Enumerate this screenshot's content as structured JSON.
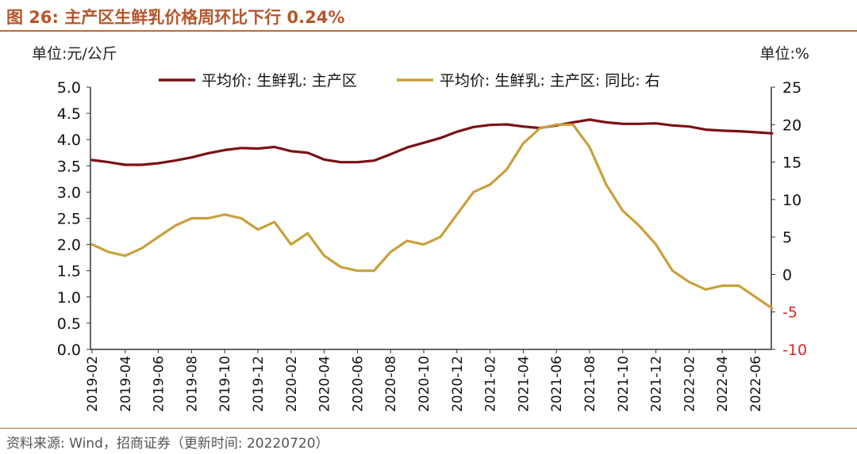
{
  "figure": {
    "title": "图 26:  主产区生鲜乳价格周环比下行 0.24%",
    "source": "资料来源:  Wind，招商证券（更新时间:  20220720）",
    "colors": {
      "accent": "#B5562B",
      "series_primary": "#7B1113",
      "series_secondary": "#C9A13B",
      "negative_tick": "#E0241B"
    }
  },
  "chart_data": {
    "type": "line",
    "left_unit": "单位:元/公斤",
    "right_unit": "单位:%",
    "ylim": [
      0,
      5
    ],
    "y2lim": [
      -10,
      25
    ],
    "yticks": [
      "0.0",
      "0.5",
      "1.0",
      "1.5",
      "2.0",
      "2.5",
      "3.0",
      "3.5",
      "4.0",
      "4.5",
      "5.0"
    ],
    "y2ticks": [
      "-10",
      "-5",
      "0",
      "5",
      "10",
      "15",
      "20",
      "25"
    ],
    "x_labels": [
      "2019-02",
      "2019-04",
      "2019-06",
      "2019-08",
      "2019-10",
      "2019-12",
      "2020-02",
      "2020-04",
      "2020-06",
      "2020-08",
      "2020-10",
      "2020-12",
      "2021-02",
      "2021-04",
      "2021-06",
      "2021-08",
      "2021-10",
      "2021-12",
      "2022-02",
      "2022-04",
      "2022-06"
    ],
    "series": [
      {
        "name": "平均价: 生鲜乳: 主产区",
        "axis": "left",
        "color": "#7B1113",
        "points": [
          [
            "2019-02",
            3.61
          ],
          [
            "2019-03",
            3.57
          ],
          [
            "2019-04",
            3.52
          ],
          [
            "2019-05",
            3.52
          ],
          [
            "2019-06",
            3.55
          ],
          [
            "2019-07",
            3.6
          ],
          [
            "2019-08",
            3.66
          ],
          [
            "2019-09",
            3.74
          ],
          [
            "2019-10",
            3.8
          ],
          [
            "2019-11",
            3.84
          ],
          [
            "2019-12",
            3.83
          ],
          [
            "2020-01",
            3.86
          ],
          [
            "2020-02",
            3.78
          ],
          [
            "2020-03",
            3.75
          ],
          [
            "2020-04",
            3.62
          ],
          [
            "2020-05",
            3.57
          ],
          [
            "2020-06",
            3.57
          ],
          [
            "2020-07",
            3.6
          ],
          [
            "2020-08",
            3.72
          ],
          [
            "2020-09",
            3.85
          ],
          [
            "2020-10",
            3.94
          ],
          [
            "2020-11",
            4.03
          ],
          [
            "2020-12",
            4.15
          ],
          [
            "2021-01",
            4.24
          ],
          [
            "2021-02",
            4.28
          ],
          [
            "2021-03",
            4.29
          ],
          [
            "2021-04",
            4.25
          ],
          [
            "2021-05",
            4.22
          ],
          [
            "2021-06",
            4.27
          ],
          [
            "2021-07",
            4.33
          ],
          [
            "2021-08",
            4.38
          ],
          [
            "2021-09",
            4.33
          ],
          [
            "2021-10",
            4.3
          ],
          [
            "2021-11",
            4.3
          ],
          [
            "2021-12",
            4.31
          ],
          [
            "2022-01",
            4.27
          ],
          [
            "2022-02",
            4.25
          ],
          [
            "2022-03",
            4.19
          ],
          [
            "2022-04",
            4.17
          ],
          [
            "2022-05",
            4.16
          ],
          [
            "2022-06",
            4.14
          ],
          [
            "2022-07",
            4.12
          ]
        ]
      },
      {
        "name": "平均价: 生鲜乳: 主产区: 同比:  右",
        "axis": "right",
        "color": "#C9A13B",
        "points": [
          [
            "2019-02",
            4.0
          ],
          [
            "2019-03",
            3.0
          ],
          [
            "2019-04",
            2.5
          ],
          [
            "2019-05",
            3.5
          ],
          [
            "2019-06",
            5.0
          ],
          [
            "2019-07",
            6.5
          ],
          [
            "2019-08",
            7.5
          ],
          [
            "2019-09",
            7.5
          ],
          [
            "2019-10",
            8.0
          ],
          [
            "2019-11",
            7.5
          ],
          [
            "2019-12",
            6.0
          ],
          [
            "2020-01",
            7.0
          ],
          [
            "2020-02",
            4.0
          ],
          [
            "2020-03",
            5.5
          ],
          [
            "2020-04",
            2.5
          ],
          [
            "2020-05",
            1.0
          ],
          [
            "2020-06",
            0.5
          ],
          [
            "2020-07",
            0.5
          ],
          [
            "2020-08",
            3.0
          ],
          [
            "2020-09",
            4.5
          ],
          [
            "2020-10",
            4.0
          ],
          [
            "2020-11",
            5.0
          ],
          [
            "2020-12",
            8.0
          ],
          [
            "2021-01",
            11.0
          ],
          [
            "2021-02",
            12.0
          ],
          [
            "2021-03",
            14.0
          ],
          [
            "2021-04",
            17.5
          ],
          [
            "2021-05",
            19.5
          ],
          [
            "2021-06",
            20.0
          ],
          [
            "2021-07",
            20.0
          ],
          [
            "2021-08",
            17.0
          ],
          [
            "2021-09",
            12.0
          ],
          [
            "2021-10",
            8.5
          ],
          [
            "2021-11",
            6.5
          ],
          [
            "2021-12",
            4.0
          ],
          [
            "2022-01",
            0.5
          ],
          [
            "2022-02",
            -1.0
          ],
          [
            "2022-03",
            -2.0
          ],
          [
            "2022-04",
            -1.5
          ],
          [
            "2022-05",
            -1.5
          ],
          [
            "2022-06",
            -3.0
          ],
          [
            "2022-07",
            -4.5
          ]
        ]
      }
    ]
  }
}
